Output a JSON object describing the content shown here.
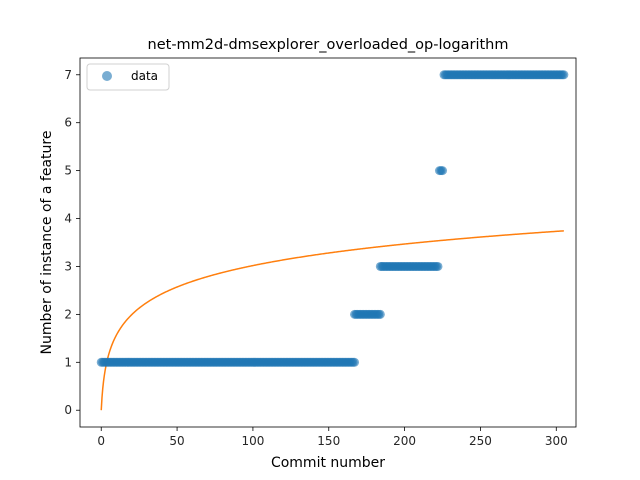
{
  "chart_data": {
    "type": "scatter",
    "title": "net-mm2d-dmsexplorer_overloaded_op-logarithm",
    "xlabel": "Commit number",
    "ylabel": "Number of instance of a feature",
    "xlim": [
      -14,
      313
    ],
    "ylim": [
      -0.35,
      7.35
    ],
    "xticks": [
      0,
      50,
      100,
      150,
      200,
      250,
      300
    ],
    "yticks": [
      0,
      1,
      2,
      3,
      4,
      5,
      6,
      7
    ],
    "grid": false,
    "legend": {
      "position": "top-left",
      "entries": [
        "data"
      ]
    },
    "colors": {
      "scatter": "#1f77b4",
      "fit": "#ff7f0e"
    },
    "series": [
      {
        "name": "data",
        "kind": "scatter",
        "segments": [
          {
            "x_start": 0,
            "x_end": 167,
            "y": 1
          },
          {
            "x_start": 167,
            "x_end": 184,
            "y": 2
          },
          {
            "x_start": 184,
            "x_end": 222,
            "y": 3
          },
          {
            "x_start": 223,
            "x_end": 225,
            "y": 5
          },
          {
            "x_start": 226,
            "x_end": 305,
            "y": 7
          }
        ]
      },
      {
        "kind": "line",
        "formula": "y = 0.654 * ln(x + 1)",
        "x_range": [
          0,
          305
        ]
      }
    ]
  }
}
